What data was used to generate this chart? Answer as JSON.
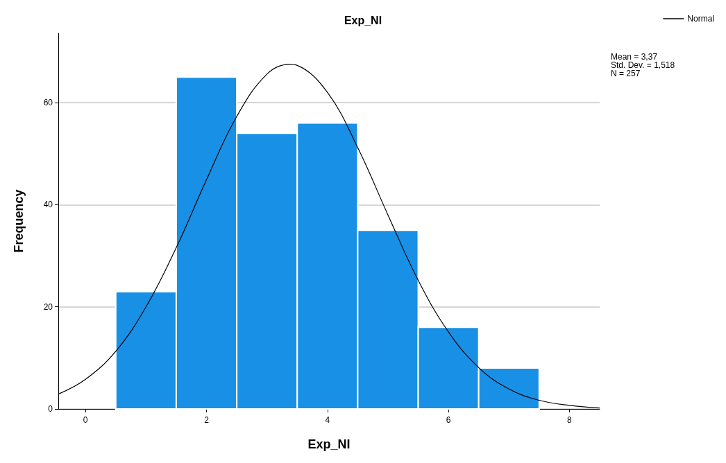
{
  "chart_data": {
    "type": "histogram",
    "title": "Exp_NI",
    "xlabel": "Exp_NI",
    "ylabel": "Frequency",
    "bins": [
      0.5,
      1.5,
      2.5,
      3.5,
      4.5,
      5.5,
      6.5,
      7.5
    ],
    "values": [
      23,
      65,
      54,
      56,
      35,
      16,
      8
    ],
    "color": "#1890e6",
    "series": [
      {
        "type": "line",
        "name": "Normal",
        "color": "#000000",
        "x": [
          -0.45,
          0,
          0.5,
          1,
          1.5,
          2,
          2.5,
          3,
          3.37,
          3.5,
          4,
          4.5,
          5,
          5.5,
          6,
          6.5,
          7,
          7.5,
          8,
          8.5
        ],
        "values": [
          2.9,
          5.8,
          11.3,
          20.0,
          31.6,
          44.9,
          57.3,
          65.6,
          67.5,
          67.3,
          62.0,
          51.2,
          38.0,
          25.2,
          15.1,
          8.1,
          3.9,
          1.7,
          0.7,
          0.2
        ]
      }
    ],
    "xlim": [
      -0.45,
      8.5
    ],
    "xticks": [
      0,
      2,
      4,
      6,
      8
    ],
    "ylim": [
      0,
      73.6
    ],
    "yticks": [
      0,
      20,
      40,
      60
    ],
    "grid": "y",
    "legend": "top right",
    "annotations": [
      "Mean = 3,37",
      "Std. Dev. = 1,518",
      "N = 257"
    ]
  }
}
